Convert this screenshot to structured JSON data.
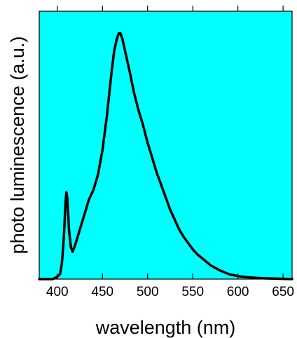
{
  "chart_data": {
    "type": "line",
    "title": "",
    "xlabel": "wavelength (nm)",
    "ylabel": "photo luminescence (a.u.)",
    "xlim": [
      380,
      660
    ],
    "xticks": [
      400,
      450,
      500,
      550,
      600,
      650
    ],
    "xtick_labels": [
      "400",
      "450",
      "500",
      "550",
      "600",
      "650"
    ],
    "ylim": [
      0,
      1.0
    ],
    "yticks_labeled": false,
    "grid": false,
    "legend": "none",
    "background_color": "#00FFFF",
    "line_color": "#000000",
    "series": [
      {
        "x": [
          380,
          395,
          400,
          403,
          405,
          407,
          409,
          410,
          411,
          413,
          415,
          417,
          420,
          425,
          430,
          435,
          440,
          445,
          450,
          455,
          460,
          463,
          466,
          468,
          470,
          472,
          475,
          480,
          485,
          490,
          495,
          500,
          505,
          510,
          515,
          520,
          525,
          530,
          535,
          540,
          545,
          550,
          555,
          560,
          565,
          570,
          575,
          580,
          590,
          600,
          610,
          620,
          630,
          640,
          650,
          660
        ],
        "y": [
          0.0,
          0.0,
          0.01,
          0.02,
          0.06,
          0.15,
          0.3,
          0.35,
          0.33,
          0.2,
          0.13,
          0.11,
          0.14,
          0.2,
          0.26,
          0.32,
          0.36,
          0.42,
          0.52,
          0.66,
          0.83,
          0.92,
          0.97,
          0.99,
          0.99,
          0.97,
          0.92,
          0.84,
          0.75,
          0.68,
          0.62,
          0.55,
          0.49,
          0.43,
          0.38,
          0.33,
          0.28,
          0.24,
          0.2,
          0.17,
          0.145,
          0.12,
          0.1,
          0.085,
          0.07,
          0.055,
          0.045,
          0.035,
          0.02,
          0.012,
          0.008,
          0.005,
          0.003,
          0.002,
          0.001,
          0.0
        ]
      }
    ]
  }
}
